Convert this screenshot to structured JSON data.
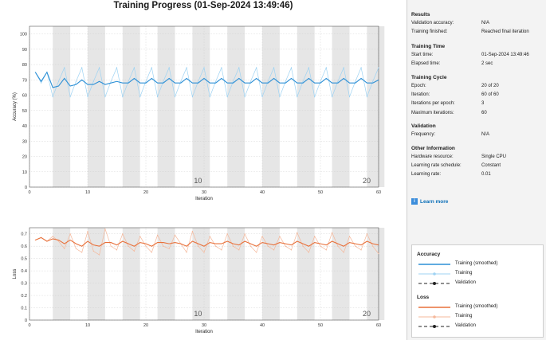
{
  "title": "Training Progress (01-Sep-2024 13:49:46)",
  "colors": {
    "accuracy_smoothed": "#2b8fd6",
    "accuracy_raw": "#9fd3f3",
    "loss_smoothed": "#e8703a",
    "loss_raw": "#f5b89b",
    "epoch_shade": "#e6e6e6"
  },
  "info": {
    "results": {
      "heading": "Results",
      "rows": [
        {
          "label": "Validation accuracy:",
          "value": "N/A"
        },
        {
          "label": "Training finished:",
          "value": "Reached final iteration"
        }
      ]
    },
    "time": {
      "heading": "Training Time",
      "rows": [
        {
          "label": "Start time:",
          "value": "01-Sep-2024 13:49:46"
        },
        {
          "label": "Elapsed time:",
          "value": "2 sec"
        }
      ]
    },
    "cycle": {
      "heading": "Training Cycle",
      "rows": [
        {
          "label": "Epoch:",
          "value": "20 of 20"
        },
        {
          "label": "Iteration:",
          "value": "60 of 60"
        },
        {
          "label": "Iterations per epoch:",
          "value": "3"
        },
        {
          "label": "Maximum iterations:",
          "value": "60"
        }
      ]
    },
    "validation": {
      "heading": "Validation",
      "rows": [
        {
          "label": "Frequency:",
          "value": "N/A"
        }
      ]
    },
    "other": {
      "heading": "Other Information",
      "rows": [
        {
          "label": "Hardware resource:",
          "value": "Single CPU"
        },
        {
          "label": "Learning rate schedule:",
          "value": "Constant"
        },
        {
          "label": "Learning rate:",
          "value": "0.01"
        }
      ]
    }
  },
  "learn_more": "Learn more",
  "legend": {
    "accuracy_heading": "Accuracy",
    "accuracy_items": [
      "Training (smoothed)",
      "Training",
      "Validation"
    ],
    "loss_heading": "Loss",
    "loss_items": [
      "Training (smoothed)",
      "Training",
      "Validation"
    ]
  },
  "chart_data": [
    {
      "type": "line",
      "name": "accuracy",
      "ylabel": "Accuracy (%)",
      "xlabel": "Iteration",
      "xlim": [
        0,
        60
      ],
      "ylim": [
        0,
        105
      ],
      "xticks": [
        0,
        10,
        20,
        30,
        40,
        50,
        60
      ],
      "yticks": [
        0,
        10,
        20,
        30,
        40,
        50,
        60,
        70,
        80,
        90,
        100
      ],
      "epoch_labels": [
        {
          "x": 29.5,
          "text": "10"
        },
        {
          "x": 58.5,
          "text": "20"
        }
      ],
      "series": [
        {
          "name": "Training (smoothed)",
          "x": [
            1,
            2,
            3,
            4,
            5,
            6,
            7,
            8,
            9,
            10,
            11,
            12,
            13,
            14,
            15,
            16,
            17,
            18,
            19,
            20,
            21,
            22,
            23,
            24,
            25,
            26,
            27,
            28,
            29,
            30,
            31,
            32,
            33,
            34,
            35,
            36,
            37,
            38,
            39,
            40,
            41,
            42,
            43,
            44,
            45,
            46,
            47,
            48,
            49,
            50,
            51,
            52,
            53,
            54,
            55,
            56,
            57,
            58,
            59,
            60
          ],
          "values": [
            75,
            69,
            75,
            65,
            66,
            71,
            66,
            67,
            70,
            67,
            67,
            69,
            67,
            68,
            69,
            68,
            68,
            71,
            68,
            68,
            71,
            68,
            68,
            71,
            68,
            68,
            71,
            68,
            68,
            71,
            68,
            68,
            71,
            68,
            68,
            71,
            68,
            68,
            71,
            68,
            68,
            71,
            68,
            68,
            71,
            68,
            68,
            71,
            68,
            68,
            71,
            68,
            68,
            71,
            68,
            68,
            71,
            68,
            68,
            70
          ]
        },
        {
          "name": "Training",
          "x": [
            1,
            2,
            3,
            4,
            5,
            6,
            7,
            8,
            9,
            10,
            11,
            12,
            13,
            14,
            15,
            16,
            17,
            18,
            19,
            20,
            21,
            22,
            23,
            24,
            25,
            26,
            27,
            28,
            29,
            30,
            31,
            32,
            33,
            34,
            35,
            36,
            37,
            38,
            39,
            40,
            41,
            42,
            43,
            44,
            45,
            46,
            47,
            48,
            49,
            50,
            51,
            52,
            53,
            54,
            55,
            56,
            57,
            58,
            59,
            60
          ],
          "values": [
            75,
            68,
            75,
            59,
            69,
            78,
            59,
            69,
            78,
            59,
            69,
            78,
            59,
            69,
            78,
            59,
            69,
            78,
            59,
            69,
            78,
            59,
            69,
            78,
            59,
            69,
            78,
            59,
            69,
            78,
            59,
            69,
            78,
            59,
            69,
            78,
            59,
            69,
            78,
            59,
            69,
            78,
            59,
            69,
            78,
            59,
            69,
            78,
            59,
            69,
            78,
            59,
            69,
            78,
            59,
            69,
            78,
            59,
            69,
            78
          ]
        }
      ]
    },
    {
      "type": "line",
      "name": "loss",
      "ylabel": "Loss",
      "xlabel": "Iteration",
      "xlim": [
        0,
        60
      ],
      "ylim": [
        0,
        0.75
      ],
      "xticks": [
        0,
        10,
        20,
        30,
        40,
        50,
        60
      ],
      "yticks": [
        0,
        0.1,
        0.2,
        0.3,
        0.4,
        0.5,
        0.6,
        0.7
      ],
      "epoch_labels": [
        {
          "x": 29.5,
          "text": "10"
        },
        {
          "x": 58.5,
          "text": "20"
        }
      ],
      "series": [
        {
          "name": "Training (smoothed)",
          "x": [
            1,
            2,
            3,
            4,
            5,
            6,
            7,
            8,
            9,
            10,
            11,
            12,
            13,
            14,
            15,
            16,
            17,
            18,
            19,
            20,
            21,
            22,
            23,
            24,
            25,
            26,
            27,
            28,
            29,
            30,
            31,
            32,
            33,
            34,
            35,
            36,
            37,
            38,
            39,
            40,
            41,
            42,
            43,
            44,
            45,
            46,
            47,
            48,
            49,
            50,
            51,
            52,
            53,
            54,
            55,
            56,
            57,
            58,
            59,
            60
          ],
          "values": [
            0.65,
            0.67,
            0.64,
            0.66,
            0.65,
            0.62,
            0.65,
            0.62,
            0.6,
            0.64,
            0.61,
            0.6,
            0.63,
            0.63,
            0.61,
            0.64,
            0.62,
            0.6,
            0.63,
            0.62,
            0.6,
            0.63,
            0.63,
            0.62,
            0.63,
            0.62,
            0.6,
            0.64,
            0.62,
            0.6,
            0.63,
            0.62,
            0.62,
            0.64,
            0.62,
            0.61,
            0.64,
            0.62,
            0.6,
            0.63,
            0.62,
            0.61,
            0.63,
            0.62,
            0.61,
            0.64,
            0.62,
            0.6,
            0.63,
            0.62,
            0.61,
            0.64,
            0.62,
            0.6,
            0.63,
            0.62,
            0.61,
            0.64,
            0.62,
            0.61
          ]
        },
        {
          "name": "Training",
          "x": [
            1,
            2,
            3,
            4,
            5,
            6,
            7,
            8,
            9,
            10,
            11,
            12,
            13,
            14,
            15,
            16,
            17,
            18,
            19,
            20,
            21,
            22,
            23,
            24,
            25,
            26,
            27,
            28,
            29,
            30,
            31,
            32,
            33,
            34,
            35,
            36,
            37,
            38,
            39,
            40,
            41,
            42,
            43,
            44,
            45,
            46,
            47,
            48,
            49,
            50,
            51,
            52,
            53,
            54,
            55,
            56,
            57,
            58,
            59,
            60
          ],
          "values": [
            0.65,
            0.67,
            0.64,
            0.68,
            0.64,
            0.58,
            0.7,
            0.58,
            0.55,
            0.72,
            0.56,
            0.53,
            0.74,
            0.6,
            0.57,
            0.7,
            0.6,
            0.56,
            0.68,
            0.6,
            0.55,
            0.69,
            0.6,
            0.58,
            0.69,
            0.62,
            0.55,
            0.72,
            0.6,
            0.55,
            0.68,
            0.6,
            0.57,
            0.7,
            0.6,
            0.57,
            0.7,
            0.6,
            0.55,
            0.68,
            0.6,
            0.57,
            0.68,
            0.6,
            0.57,
            0.71,
            0.6,
            0.55,
            0.68,
            0.6,
            0.57,
            0.71,
            0.6,
            0.55,
            0.68,
            0.6,
            0.57,
            0.7,
            0.6,
            0.54
          ]
        }
      ]
    }
  ]
}
